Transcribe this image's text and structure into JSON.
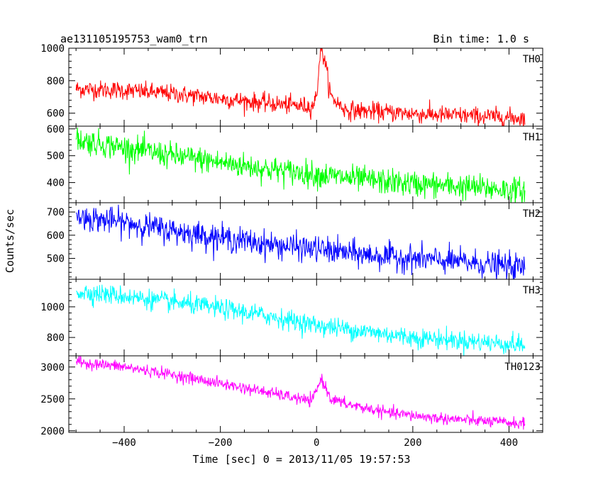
{
  "header": {
    "title": "ae131105195753_wam0_trn",
    "bin_time": "Bin time: 1.0 s"
  },
  "axes": {
    "xlabel": "Time [sec] 0 = 2013/11/05 19:57:53",
    "ylabel": "Counts/sec"
  },
  "chart_data": {
    "type": "line",
    "title": "ae131105195753_wam0_trn",
    "subtitle": "Bin time: 1.0 s",
    "xlabel": "Time [sec] 0 = 2013/11/05 19:57:53",
    "ylabel": "Counts/sec",
    "xlim": [
      -515,
      470
    ],
    "x_ticks": [
      -400,
      -200,
      0,
      200,
      400
    ],
    "x_range": [
      -500,
      433
    ],
    "grid": false,
    "legend": "none",
    "panels": [
      {
        "name": "TH0",
        "color": "#ff0000",
        "ylim": [
          520,
          1000
        ],
        "y_ticks": [
          600,
          800,
          1000
        ],
        "trend": [
          [
            -500,
            750
          ],
          [
            -400,
            740
          ],
          [
            -300,
            720
          ],
          [
            -200,
            690
          ],
          [
            -100,
            660
          ],
          [
            -10,
            640
          ],
          [
            0,
            700
          ],
          [
            8,
            1000
          ],
          [
            16,
            940
          ],
          [
            30,
            700
          ],
          [
            60,
            620
          ],
          [
            150,
            605
          ],
          [
            250,
            590
          ],
          [
            350,
            580
          ],
          [
            433,
            570
          ]
        ],
        "noise": 28
      },
      {
        "name": "TH1",
        "color": "#00ff00",
        "ylim": [
          325,
          610
        ],
        "y_ticks": [
          400,
          500,
          600
        ],
        "trend": [
          [
            -500,
            560
          ],
          [
            -400,
            530
          ],
          [
            -300,
            500
          ],
          [
            -200,
            475
          ],
          [
            -100,
            450
          ],
          [
            0,
            430
          ],
          [
            100,
            410
          ],
          [
            200,
            395
          ],
          [
            300,
            385
          ],
          [
            433,
            370
          ]
        ],
        "noise": 24
      },
      {
        "name": "TH2",
        "color": "#0000ff",
        "ylim": [
          410,
          740
        ],
        "y_ticks": [
          500,
          600,
          700
        ],
        "trend": [
          [
            -500,
            680
          ],
          [
            -400,
            655
          ],
          [
            -300,
            620
          ],
          [
            -200,
            590
          ],
          [
            -100,
            560
          ],
          [
            0,
            540
          ],
          [
            100,
            515
          ],
          [
            200,
            500
          ],
          [
            300,
            485
          ],
          [
            433,
            460
          ]
        ],
        "noise": 28
      },
      {
        "name": "TH3",
        "color": "#00ffff",
        "ylim": [
          680,
          1180
        ],
        "y_ticks": [
          800,
          1000
        ],
        "trend": [
          [
            -500,
            1100
          ],
          [
            -400,
            1070
          ],
          [
            -300,
            1030
          ],
          [
            -200,
            990
          ],
          [
            -100,
            940
          ],
          [
            0,
            880
          ],
          [
            100,
            840
          ],
          [
            200,
            800
          ],
          [
            300,
            780
          ],
          [
            433,
            750
          ]
        ],
        "noise": 32
      },
      {
        "name": "TH0123",
        "color": "#ff00ff",
        "ylim": [
          1975,
          3175
        ],
        "y_ticks": [
          2000,
          2500,
          3000
        ],
        "trend": [
          [
            -500,
            3080
          ],
          [
            -400,
            3000
          ],
          [
            -300,
            2880
          ],
          [
            -200,
            2740
          ],
          [
            -100,
            2600
          ],
          [
            -10,
            2460
          ],
          [
            10,
            2820
          ],
          [
            30,
            2500
          ],
          [
            60,
            2420
          ],
          [
            150,
            2280
          ],
          [
            250,
            2200
          ],
          [
            350,
            2150
          ],
          [
            433,
            2110
          ]
        ],
        "noise": 45
      }
    ]
  }
}
